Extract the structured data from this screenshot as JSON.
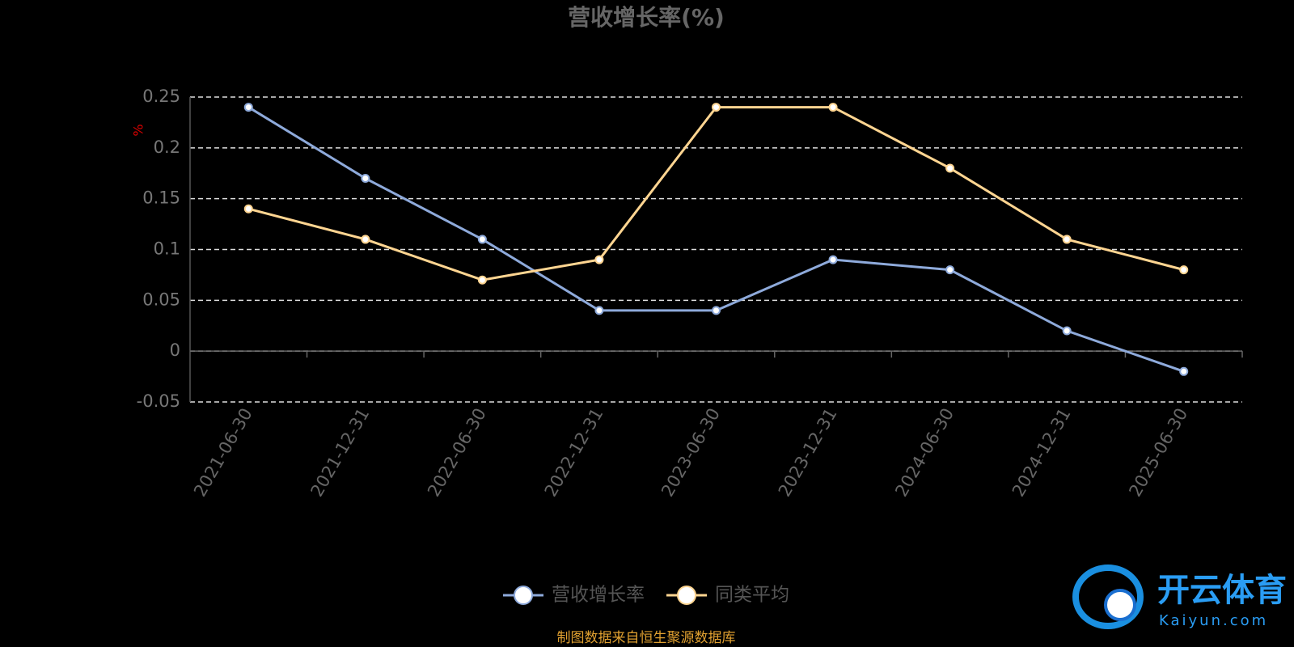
{
  "chart_data": {
    "type": "line",
    "title": "营收增长率(%)",
    "y_label": "%",
    "categories": [
      "2021-06-30",
      "2021-12-31",
      "2022-06-30",
      "2022-12-31",
      "2023-06-30",
      "2023-12-31",
      "2024-06-30",
      "2024-12-31",
      "2025-06-30"
    ],
    "series": [
      {
        "name": "营收增长率",
        "color": "#8eaadb",
        "values": [
          0.24,
          0.17,
          0.11,
          0.04,
          0.04,
          0.09,
          0.08,
          0.02,
          -0.02
        ]
      },
      {
        "name": "同类平均",
        "color": "#ffd591",
        "values": [
          0.14,
          0.11,
          0.07,
          0.09,
          0.24,
          0.24,
          0.18,
          0.11,
          0.08
        ]
      }
    ],
    "ylim": [
      -0.05,
      0.25
    ],
    "yticks": [
      -0.05,
      0,
      0.05,
      0.1,
      0.15,
      0.2,
      0.25
    ],
    "grid": true,
    "source": "制图数据来自恒生聚源数据库"
  },
  "watermark": {
    "name": "开云体育",
    "url": "Kaiyun.com"
  }
}
